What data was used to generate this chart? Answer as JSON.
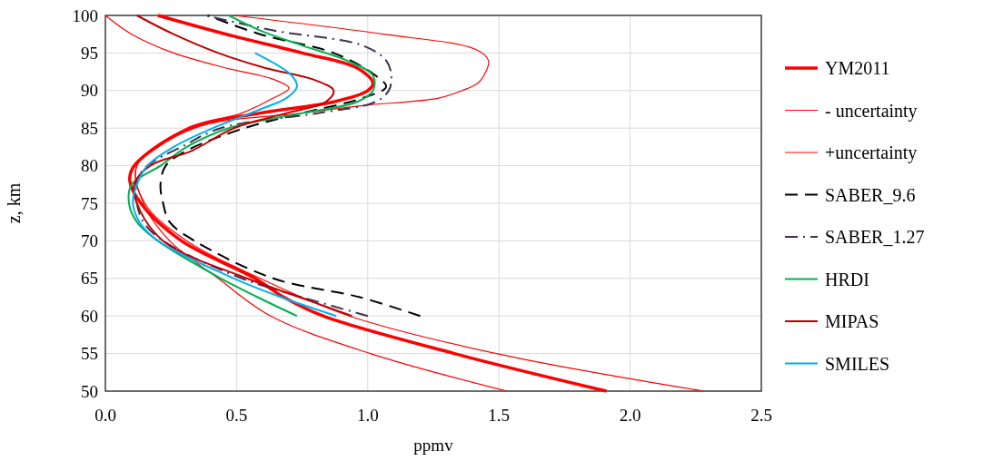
{
  "chart_data": {
    "type": "line",
    "xlabel": "ppmv",
    "ylabel": "z, km",
    "xlim": [
      0,
      2.5
    ],
    "ylim": [
      50,
      100
    ],
    "xticks": [
      {
        "value": 0,
        "label": "0.0"
      },
      {
        "value": 0.5,
        "label": "0.5"
      },
      {
        "value": 1,
        "label": "1.0"
      },
      {
        "value": 1.5,
        "label": "1.5"
      },
      {
        "value": 2,
        "label": "2.0"
      },
      {
        "value": 2.5,
        "label": "2.5"
      }
    ],
    "yticks": [
      50,
      55,
      60,
      65,
      70,
      75,
      80,
      85,
      90,
      95,
      100
    ],
    "grid": true,
    "legend": "right",
    "series": [
      {
        "name": "YM2011",
        "color": "#ff0000",
        "line_style": "solid",
        "x": [
          1.91,
          1.33,
          0.83,
          0.68,
          0.57,
          0.29,
          0.135,
          0.093,
          0.11,
          0.325,
          0.59,
          0.87,
          1.0,
          1.02,
          0.96,
          0.75,
          0.46,
          0.2
        ],
        "values": [
          50,
          55,
          60,
          62.5,
          65,
          70,
          75,
          78,
          80,
          85,
          87,
          88.5,
          90,
          91,
          93,
          95,
          97.5,
          100
        ]
      },
      {
        "name": "- uncertainty",
        "color": "#ff0000",
        "line_style": "solid",
        "x": [
          1.53,
          1.01,
          0.63,
          0.43,
          0.245,
          0.145,
          0.12,
          0.31,
          0.52,
          0.64,
          0.7,
          0.64,
          0.46,
          0.26,
          0.1,
          0
        ],
        "values": [
          50,
          55,
          60,
          65,
          70,
          75,
          80,
          85,
          87,
          89,
          90.3,
          91.5,
          93,
          95,
          97.5,
          100
        ]
      },
      {
        "name": "+uncertainty",
        "color": "#ff0000",
        "line_style": "solid",
        "x": [
          2.28,
          1.49,
          0.93,
          0.59,
          0.31,
          0.15,
          0.12,
          0.34,
          0.75,
          0.98,
          1.27,
          1.36,
          1.42,
          1.45,
          1.46,
          1.41,
          1.06,
          0.49
        ],
        "values": [
          50,
          55,
          60,
          65,
          70,
          75,
          80,
          85,
          87,
          88,
          89,
          90,
          91,
          92.5,
          94,
          95.5,
          97.5,
          100
        ]
      },
      {
        "name": "SABER_9.6",
        "color": "#000000",
        "line_style": "dashed",
        "x": [
          1.2,
          0.97,
          0.64,
          0.34,
          0.245,
          0.22,
          0.21,
          0.23,
          0.31,
          0.53,
          0.75,
          0.98,
          1.07,
          1.03,
          0.87,
          0.59,
          0.39
        ],
        "values": [
          60,
          62.5,
          65,
          70,
          72.5,
          75,
          77.5,
          80,
          82,
          85,
          87,
          89,
          90.5,
          92,
          95,
          97.5,
          100
        ]
      },
      {
        "name": "SABER_1.27",
        "color": "#403152",
        "line_style": "dashdot",
        "x": [
          1.0,
          0.75,
          0.52,
          0.22,
          0.145,
          0.12,
          0.12,
          0.16,
          0.29,
          0.44,
          0.81,
          1.03,
          1.08,
          1.09,
          1.07,
          0.98,
          0.64,
          0.38
        ],
        "values": [
          60,
          62.5,
          65,
          70,
          72.5,
          75,
          78,
          80,
          82.5,
          85,
          87,
          88.5,
          90,
          92,
          94,
          96,
          98,
          100
        ]
      },
      {
        "name": "HRDI",
        "color": "#00b050",
        "line_style": "solid",
        "x": [
          0.73,
          0.58,
          0.44,
          0.2,
          0.12,
          0.09,
          0.1,
          0.21,
          0.31,
          0.47,
          0.75,
          0.96,
          1.02,
          1.02,
          0.92,
          0.75,
          0.59,
          0.47
        ],
        "values": [
          60,
          62.5,
          65,
          70,
          72.5,
          75,
          77.5,
          80,
          82.5,
          85,
          87,
          88.5,
          90,
          92,
          94,
          96,
          98,
          100
        ]
      },
      {
        "name": "MIPAS",
        "color": "#c00000",
        "line_style": "solid",
        "x": [
          0.94,
          0.74,
          0.54,
          0.22,
          0.12,
          0.11,
          0.17,
          0.33,
          0.49,
          0.69,
          0.84,
          0.87,
          0.79,
          0.61,
          0.43,
          0.26,
          0.12
        ],
        "values": [
          60,
          62.5,
          65,
          70,
          75,
          77.5,
          80,
          82,
          85,
          87,
          88.5,
          90,
          91.5,
          93,
          95,
          97.5,
          100
        ]
      },
      {
        "name": "SMILES",
        "color": "#00b0f0",
        "line_style": "solid",
        "x": [
          0.88,
          0.67,
          0.49,
          0.2,
          0.13,
          0.105,
          0.12,
          0.16,
          0.26,
          0.41,
          0.59,
          0.69,
          0.73,
          0.71,
          0.57
        ],
        "values": [
          60,
          62.5,
          65,
          70,
          72.5,
          75,
          77.5,
          80,
          82.5,
          85,
          87.5,
          89,
          90.5,
          92,
          95
        ]
      }
    ]
  }
}
